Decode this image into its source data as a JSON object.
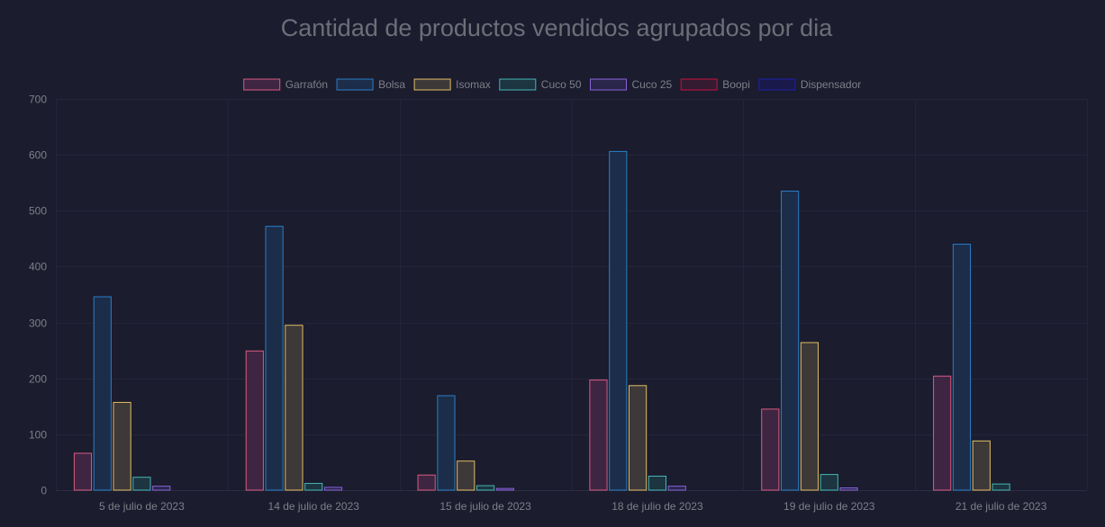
{
  "chart_data": {
    "type": "bar",
    "title": "Cantidad de productos vendidos agrupados por dia",
    "categories": [
      "5 de julio de 2023",
      "14 de julio de 2023",
      "15 de julio de 2023",
      "18 de julio de 2023",
      "19 de julio de 2023",
      "21 de julio de 2023"
    ],
    "series": [
      {
        "name": "Garrafón",
        "border_color": "#d95a82",
        "fill_color": "#3e2643",
        "values": [
          66,
          249,
          27,
          197,
          145,
          204
        ]
      },
      {
        "name": "Bolsa",
        "border_color": "#2a7fc7",
        "fill_color": "#1c2d4a",
        "values": [
          346,
          472,
          169,
          606,
          535,
          440
        ]
      },
      {
        "name": "Isomax",
        "border_color": "#e2bd62",
        "fill_color": "#3d3939",
        "values": [
          157,
          295,
          52,
          187,
          264,
          88
        ]
      },
      {
        "name": "Cuco 50",
        "border_color": "#45b5b5",
        "fill_color": "#1c3540",
        "values": [
          23,
          12,
          8,
          25,
          28,
          11
        ]
      },
      {
        "name": "Cuco 25",
        "border_color": "#8a63dc",
        "fill_color": "#29264a",
        "values": [
          7,
          5,
          3,
          7,
          4,
          0
        ]
      },
      {
        "name": "Boopi",
        "border_color": "#c8123e",
        "fill_color": "#351b31",
        "values": [
          0,
          0,
          0,
          0,
          0,
          0
        ]
      },
      {
        "name": "Dispensador",
        "border_color": "#1f1fa8",
        "fill_color": "#1a1a4a",
        "values": [
          0,
          0,
          0,
          0,
          0,
          0
        ]
      }
    ],
    "y_ticks": [
      "0",
      "100",
      "200",
      "300",
      "400",
      "500",
      "600",
      "700"
    ],
    "ylim": [
      0,
      700
    ],
    "grid": true,
    "legend_position": "top"
  }
}
